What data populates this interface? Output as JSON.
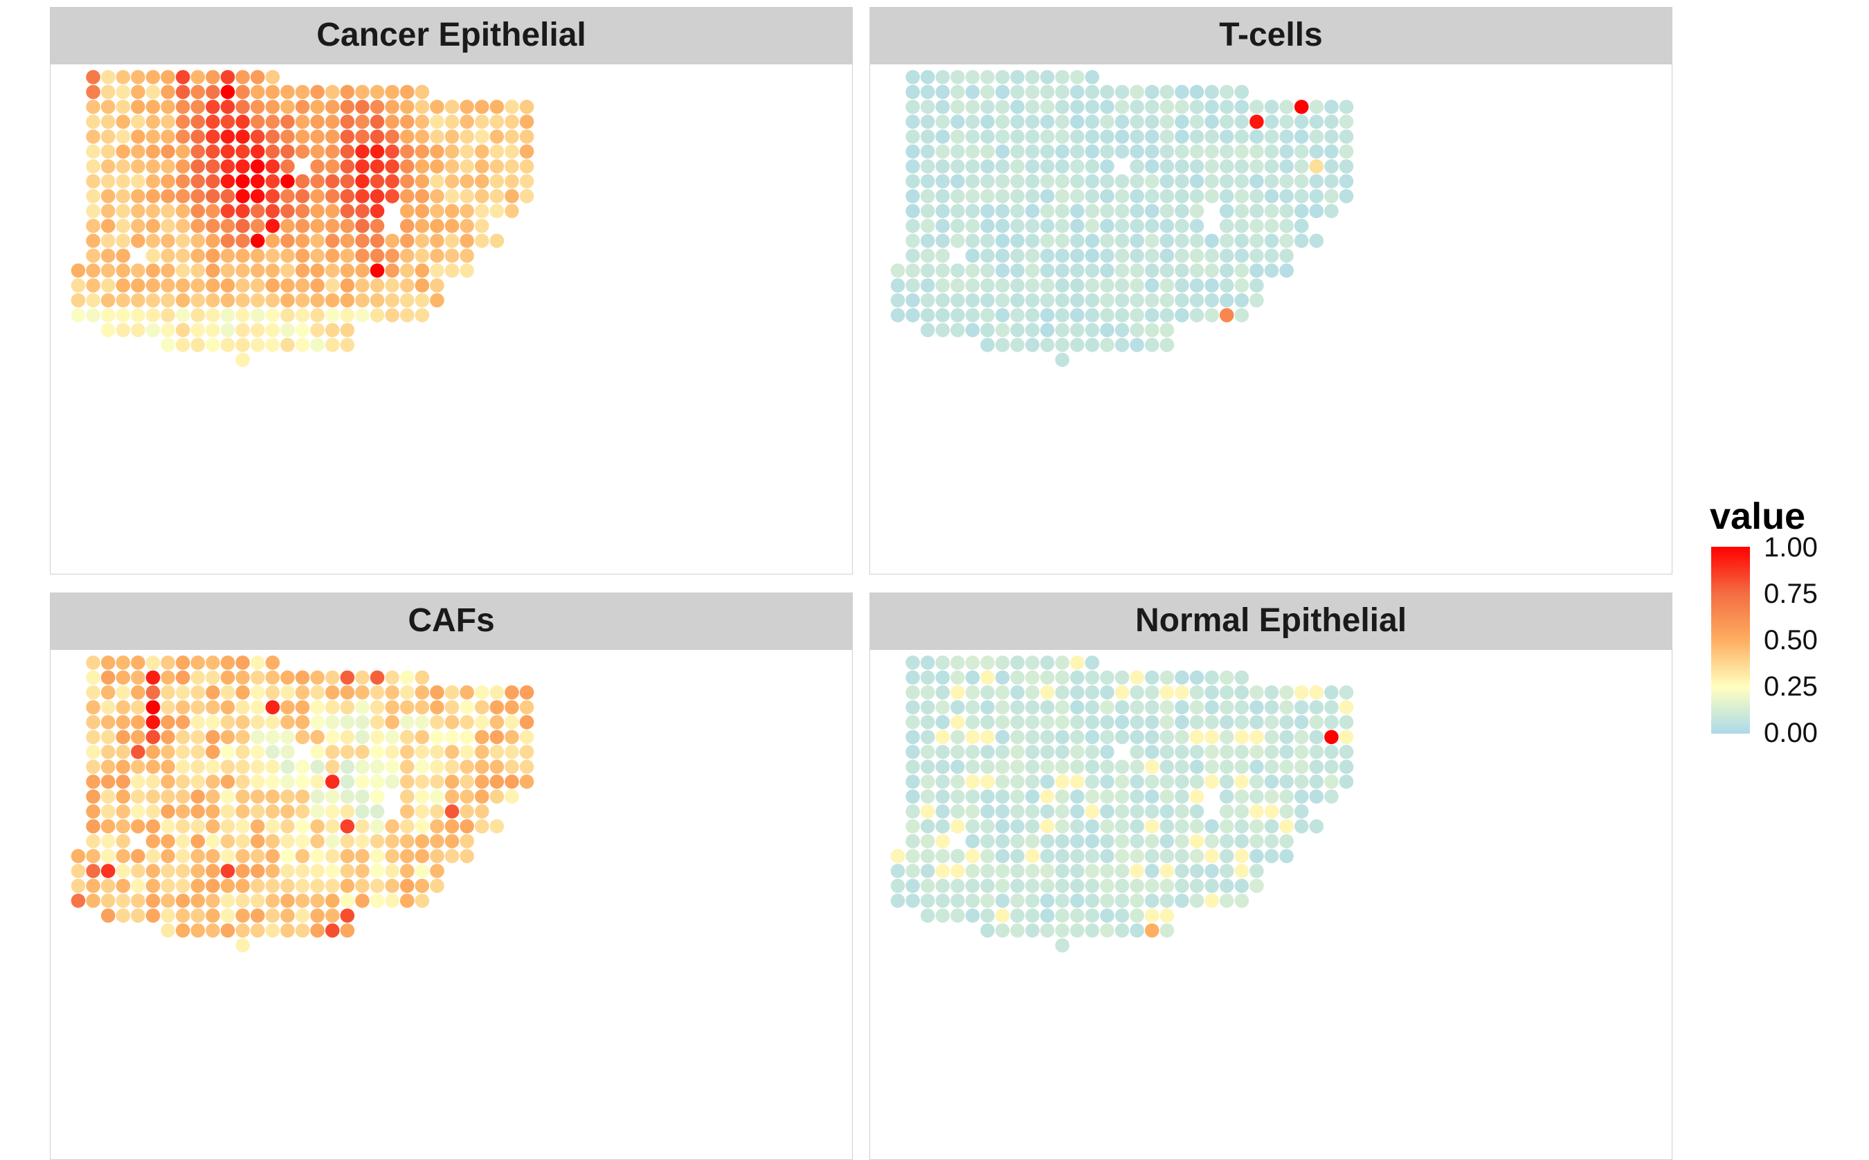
{
  "chart_data": {
    "type": "scatter",
    "legend": {
      "title": "value",
      "ticks": [
        "0.00",
        "0.25",
        "0.50",
        "0.75",
        "1.00"
      ],
      "range": [
        0,
        1
      ],
      "colors": [
        "#abd9e9",
        "#ffffbf",
        "#fdae61",
        "#f46d43",
        "#ff0000"
      ],
      "placement": "right"
    },
    "grid": false,
    "panels": [
      {
        "title": "Cancer Epithelial",
        "pattern": "cancer"
      },
      {
        "title": "T-cells",
        "pattern": "tcells"
      },
      {
        "title": "CAFs",
        "pattern": "cafs"
      },
      {
        "title": "Normal Epithelial",
        "pattern": "normal"
      }
    ]
  }
}
